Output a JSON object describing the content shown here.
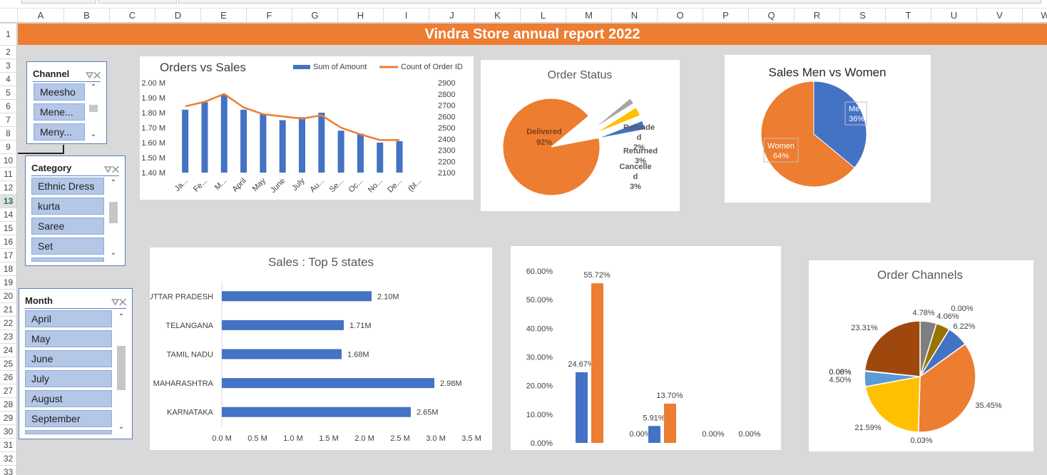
{
  "sheet": {
    "columns": [
      "A",
      "B",
      "C",
      "D",
      "E",
      "F",
      "G",
      "H",
      "I",
      "J",
      "K",
      "L",
      "M",
      "N",
      "O",
      "P",
      "Q",
      "R",
      "S",
      "T",
      "U",
      "V",
      "W"
    ],
    "rows": [
      "1",
      "2",
      "3",
      "4",
      "5",
      "6",
      "7",
      "8",
      "9",
      "10",
      "11",
      "12",
      "13",
      "14",
      "15",
      "16",
      "17",
      "18",
      "19",
      "20",
      "21",
      "22",
      "23",
      "24",
      "25",
      "26",
      "27",
      "28",
      "29",
      "30",
      "31",
      "32",
      "33"
    ],
    "selected_row": "13",
    "title": "Vindra Store annual report 2022"
  },
  "slicers": {
    "channel": {
      "title": "Channel",
      "items": [
        "Meesho",
        "Mene...",
        "Meny..."
      ]
    },
    "category": {
      "title": "Category",
      "items": [
        "Ethnic Dress",
        "kurta",
        "Saree",
        "Set"
      ]
    },
    "month": {
      "title": "Month",
      "items": [
        "April",
        "May",
        "June",
        "July",
        "August",
        "September"
      ]
    }
  },
  "colors": {
    "blue": "#4472c4",
    "orange": "#ed7d31",
    "gray": "#a5a5a5",
    "yellow": "#ffc000",
    "lightblue": "#5b9bd5",
    "green": "#70ad47",
    "olive": "#997300",
    "darkgray": "#7f7f7f",
    "brown": "#9e480e",
    "header_orange": "#ed7d31"
  },
  "chart_data": [
    {
      "type": "bar",
      "title": "Orders vs Sales",
      "categories": [
        "Ja...",
        "Fe...",
        "M...",
        "April",
        "May",
        "June",
        "July",
        "Au...",
        "Se...",
        "Oc...",
        "No...",
        "De...",
        "(bl..."
      ],
      "series": [
        {
          "name": "Sum of Amount",
          "values": [
            1.82,
            1.87,
            1.92,
            1.82,
            1.79,
            1.75,
            1.77,
            1.8,
            1.68,
            1.66,
            1.6,
            1.61,
            null
          ]
        },
        {
          "name": "Count of Order ID",
          "values": [
            2690,
            2730,
            2800,
            2680,
            2620,
            2600,
            2580,
            2610,
            2500,
            2440,
            2390,
            2390,
            null
          ]
        }
      ],
      "y_ticks": [
        "2.00 M",
        "1.90 M",
        "1.80 M",
        "1.70 M",
        "1.60 M",
        "1.50 M",
        "1.40 M"
      ],
      "ylim": [
        1.4,
        2.0
      ],
      "y2_ticks": [
        "2900",
        "2800",
        "2700",
        "2600",
        "2500",
        "2400",
        "2300",
        "2200",
        "2100"
      ],
      "y2lim": [
        2100,
        2900
      ],
      "legend": "top-right"
    },
    {
      "type": "pie",
      "title": "Order Status",
      "labels": [
        {
          "name": "Delivered",
          "pct": "92%"
        },
        {
          "name": "Refunde d",
          "pct": "2%"
        },
        {
          "name": "Returned",
          "pct": "3%"
        },
        {
          "name": "Cancelle d",
          "pct": "3%"
        }
      ],
      "values": [
        92,
        2,
        3,
        3
      ]
    },
    {
      "type": "pie",
      "title": "Sales Men vs Women",
      "labels": [
        {
          "name": "Men",
          "pct": "36%"
        },
        {
          "name": "Women",
          "pct": "64%"
        }
      ],
      "values": [
        36,
        64
      ]
    },
    {
      "type": "bar",
      "title": "Sales : Top 5 states",
      "categories": [
        "UTTAR PRADESH",
        "TELANGANA",
        "TAMIL NADU",
        "MAHARASHTRA",
        "KARNATAKA"
      ],
      "values": [
        2.1,
        1.71,
        1.68,
        2.98,
        2.65
      ],
      "data_labels": [
        "2.10M",
        "1.71M",
        "1.68M",
        "2.98M",
        "2.65M"
      ],
      "x_ticks": [
        "0.0 M",
        "0.5 M",
        "1.0 M",
        "1.5 M",
        "2.0 M",
        "2.5 M",
        "3.0 M",
        "3.5 M"
      ],
      "xlim": [
        0,
        3.5
      ]
    },
    {
      "type": "bar",
      "title": "",
      "groups": [
        {
          "values": [
            24.67,
            55.72
          ],
          "labels": [
            "24.67%",
            "55.72%"
          ]
        },
        {
          "values": [
            0,
            0
          ],
          "labels": [
            "",
            "0.00%"
          ]
        },
        {
          "values": [
            5.91,
            13.7
          ],
          "labels": [
            "5.91%",
            "13.70%"
          ]
        },
        {
          "values": [
            0,
            0
          ],
          "labels": [
            "",
            "0.00%"
          ]
        },
        {
          "values": [
            0,
            0
          ],
          "labels": [
            "",
            "0.00%"
          ]
        }
      ],
      "y_ticks": [
        "60.00%",
        "50.00%",
        "40.00%",
        "30.00%",
        "20.00%",
        "10.00%",
        "0.00%"
      ],
      "ylim": [
        0,
        60
      ]
    },
    {
      "type": "pie",
      "title": "Order Channels",
      "values": [
        4.78,
        4.06,
        0.0,
        6.22,
        35.45,
        0.03,
        21.59,
        4.5,
        0.08,
        0.06,
        23.31
      ],
      "labels": [
        "4.78%",
        "4.06%",
        "0.00%",
        "6.22%",
        "35.45%",
        "0.03%",
        "21.59%",
        "4.50%",
        "0.08%",
        "0.06%",
        "23.31%"
      ]
    }
  ]
}
